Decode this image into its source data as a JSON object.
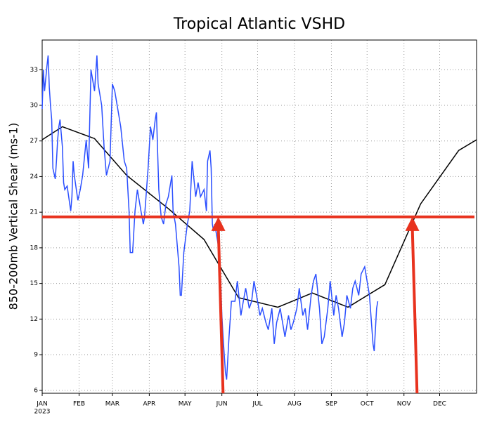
{
  "chart_data": {
    "type": "line",
    "title": "Tropical Atlantic VSHD",
    "y_label": "850-200mb Vertical Shear (ms-1)",
    "x_year_label": "2023",
    "xlim": [
      0,
      365
    ],
    "ylim": [
      5.75,
      35.5
    ],
    "xticks": [
      {
        "value": 0,
        "label": "JAN"
      },
      {
        "value": 31,
        "label": "FEB"
      },
      {
        "value": 59,
        "label": "MAR"
      },
      {
        "value": 90,
        "label": "APR"
      },
      {
        "value": 120,
        "label": "MAY"
      },
      {
        "value": 151,
        "label": "JUN"
      },
      {
        "value": 181,
        "label": "JUL"
      },
      {
        "value": 212,
        "label": "AUG"
      },
      {
        "value": 243,
        "label": "SEP"
      },
      {
        "value": 273,
        "label": "OCT"
      },
      {
        "value": 304,
        "label": "NOV"
      },
      {
        "value": 334,
        "label": "DEC"
      }
    ],
    "yticks": [
      6,
      9,
      12,
      15,
      18,
      21,
      24,
      27,
      30,
      33
    ],
    "grid": true,
    "threshold": 20.6,
    "threshold_color": "#e8321e",
    "arrows": [
      {
        "x": 148,
        "x_base": 152
      },
      {
        "x": 311,
        "x_base": 315
      }
    ],
    "series": [
      {
        "color": "#000000",
        "x": [
          0,
          17,
          44,
          71,
          106,
          136,
          165,
          198,
          227,
          257,
          288,
          318,
          350,
          365
        ],
        "values": [
          27.1,
          28.2,
          27.2,
          24.1,
          21.3,
          18.7,
          13.8,
          13.0,
          14.2,
          13.0,
          14.9,
          21.7,
          26.2,
          27.1
        ]
      },
      {
        "color": "#2b4fff",
        "x": [
          0,
          1,
          2,
          4,
          5,
          6,
          7,
          8,
          9,
          11,
          12,
          13,
          14,
          15,
          17,
          18,
          19,
          21,
          24,
          25,
          26,
          27,
          30,
          32,
          34,
          37,
          39,
          41,
          44,
          46,
          47,
          50,
          52,
          54,
          57,
          59,
          61,
          64,
          66,
          69,
          71,
          73,
          74,
          76,
          78,
          80,
          83,
          85,
          86,
          89,
          91,
          93,
          95,
          96,
          98,
          100,
          102,
          104,
          106,
          109,
          110,
          112,
          115,
          116,
          117,
          119,
          122,
          124,
          126,
          129,
          131,
          133,
          136,
          138,
          139,
          141,
          142,
          143,
          144,
          145,
          148,
          150,
          151,
          152,
          154,
          155,
          157,
          159,
          162,
          164,
          167,
          169,
          171,
          174,
          176,
          178,
          181,
          183,
          185,
          188,
          190,
          193,
          195,
          197,
          200,
          202,
          204,
          207,
          209,
          211,
          214,
          216,
          219,
          221,
          223,
          226,
          228,
          230,
          233,
          235,
          237,
          240,
          242,
          245,
          247,
          249,
          252,
          254,
          256,
          259,
          261,
          263,
          266,
          268,
          271,
          273,
          275,
          278,
          279,
          280,
          281,
          282
        ],
        "values": [
          29.7,
          33.0,
          31.2,
          33.3,
          34.2,
          31.5,
          30.0,
          28.8,
          24.7,
          23.8,
          25.3,
          27.1,
          28.2,
          28.8,
          26.5,
          23.5,
          22.9,
          23.2,
          21.1,
          22.3,
          25.3,
          24.1,
          22.0,
          22.9,
          24.1,
          27.1,
          24.7,
          33.0,
          31.2,
          34.2,
          31.8,
          30.0,
          26.5,
          24.1,
          25.3,
          31.8,
          31.2,
          29.4,
          28.2,
          25.3,
          24.7,
          21.1,
          17.6,
          17.6,
          21.1,
          22.9,
          21.1,
          20.0,
          20.6,
          24.7,
          28.2,
          27.1,
          28.8,
          29.4,
          22.9,
          20.6,
          20.0,
          21.7,
          22.3,
          24.1,
          21.1,
          20.0,
          16.4,
          14.0,
          14.0,
          17.6,
          20.0,
          21.1,
          25.3,
          22.3,
          23.5,
          22.3,
          22.9,
          21.1,
          25.3,
          26.2,
          24.7,
          20.0,
          19.4,
          20.0,
          18.2,
          15.2,
          12.3,
          10.5,
          7.5,
          6.9,
          10.5,
          13.5,
          13.5,
          15.2,
          12.3,
          13.5,
          14.6,
          12.9,
          13.5,
          15.2,
          13.5,
          12.3,
          12.9,
          11.7,
          11.1,
          12.9,
          9.9,
          11.7,
          12.9,
          11.7,
          10.5,
          12.3,
          11.1,
          11.7,
          12.9,
          14.6,
          12.3,
          12.9,
          11.1,
          14.0,
          15.2,
          15.8,
          12.9,
          9.9,
          10.5,
          12.9,
          15.2,
          12.3,
          14.0,
          12.9,
          10.5,
          11.7,
          14.0,
          12.9,
          14.6,
          15.2,
          14.0,
          15.8,
          16.4,
          15.2,
          14.0,
          9.9,
          9.3,
          11.1,
          12.9,
          13.5
        ]
      }
    ]
  }
}
